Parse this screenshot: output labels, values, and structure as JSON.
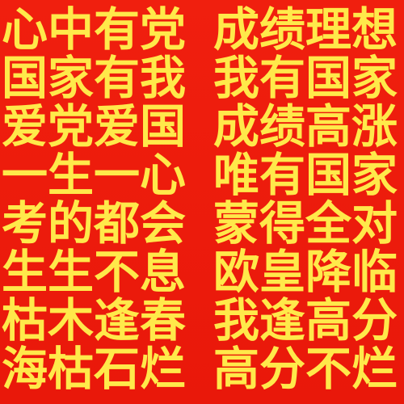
{
  "rows": [
    {
      "left": "心中有党",
      "right": "成绩理想"
    },
    {
      "left": "国家有我",
      "right": "我有国家"
    },
    {
      "left": "爱党爱国",
      "right": "成绩高涨"
    },
    {
      "left": "一生一心",
      "right": "唯有国家"
    },
    {
      "left": "考的都会",
      "right": "蒙得全对"
    },
    {
      "left": "生生不息",
      "right": "欧皇降临"
    },
    {
      "left": "枯木逢春",
      "right": "我逢高分"
    },
    {
      "left": "海枯石烂",
      "right": "高分不烂"
    }
  ],
  "colors": {
    "background": "#ee1d0c",
    "text": "#ffe94a"
  }
}
